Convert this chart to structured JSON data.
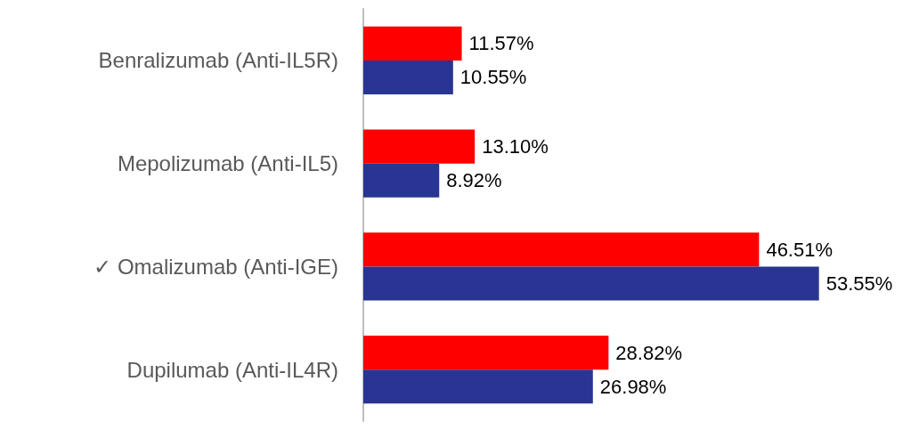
{
  "chart_data": {
    "type": "bar",
    "orientation": "horizontal",
    "categories": [
      "Benralizumab (Anti-IL5R)",
      "Mepolizumab (Anti-IL5)",
      "✓ Omalizumab (Anti-IGE)",
      "Dupilumab (Anti-IL4R)"
    ],
    "series": [
      {
        "color": "#ff0000",
        "values": [
          11.57,
          13.1,
          46.51,
          28.82
        ],
        "value_labels": [
          "11.57%",
          "13.10%",
          "46.51%",
          "28.82%"
        ]
      },
      {
        "color": "#283593",
        "values": [
          10.55,
          8.92,
          53.55,
          26.98
        ],
        "value_labels": [
          "10.55%",
          "8.92%",
          "53.55%",
          "26.98%"
        ]
      }
    ],
    "grid": false
  }
}
